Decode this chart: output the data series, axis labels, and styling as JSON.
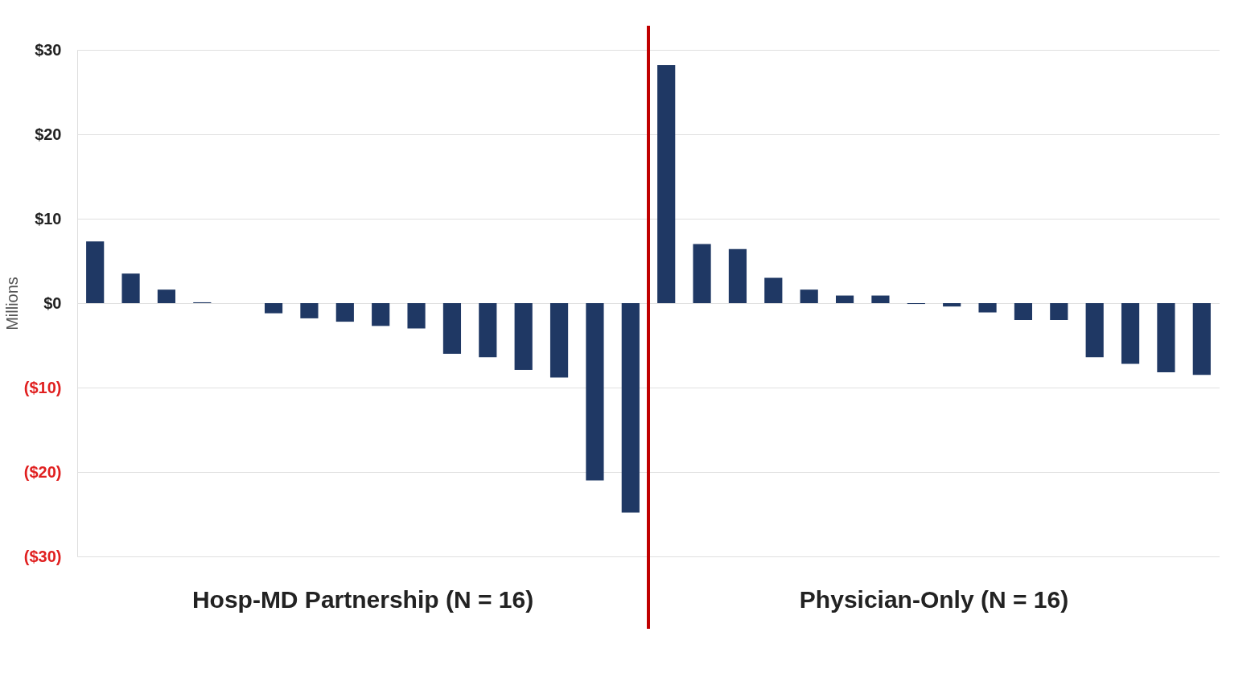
{
  "chart_data": {
    "type": "bar",
    "ylabel": "Millions",
    "categories": [
      null,
      null,
      null,
      null,
      null,
      null,
      null,
      null,
      null,
      null,
      null,
      null,
      null,
      null,
      null,
      null,
      null,
      null,
      null,
      null,
      null,
      null,
      null,
      null,
      null,
      null,
      null,
      null,
      null,
      null,
      null,
      null
    ],
    "series": [
      {
        "color": "#1f3864",
        "values": [
          7.3,
          3.5,
          1.6,
          0.1,
          0,
          -1.2,
          -1.8,
          -2.2,
          -2.7,
          -3.0,
          -6.0,
          -6.4,
          -7.9,
          -8.8,
          -21.0,
          -24.8,
          28.2,
          7.0,
          6.4,
          3.0,
          1.6,
          0.9,
          0.9,
          -0.1,
          -0.4,
          -1.1,
          -2.0,
          -2.0,
          -6.4,
          -7.2,
          -8.2,
          -8.5
        ]
      }
    ],
    "ylim": [
      -30,
      30
    ],
    "yticks": [
      {
        "value": -30,
        "label": "($30)"
      },
      {
        "value": -20,
        "label": "($20)"
      },
      {
        "value": -10,
        "label": "($10)"
      },
      {
        "value": 0,
        "label": "$0"
      },
      {
        "value": 10,
        "label": "$10"
      },
      {
        "value": 20,
        "label": "$20"
      },
      {
        "value": 30,
        "label": "$30"
      }
    ],
    "annotations": [
      "Hosp-MD Partnership (N = 16)",
      "Physician-Only (N = 16)"
    ],
    "grid": "y",
    "tick_labels": "y"
  }
}
